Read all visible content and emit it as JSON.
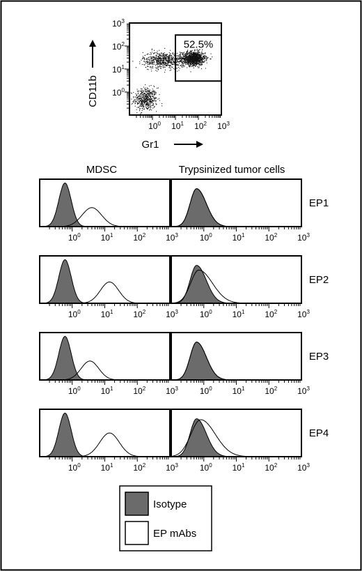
{
  "chart_data": [
    {
      "type": "scatter",
      "xlabel": "Gr1",
      "ylabel": "CD11b",
      "xscale": "log",
      "yscale": "log",
      "xlim": [
        0.1,
        1000
      ],
      "ylim": [
        0.1,
        1000
      ],
      "tick_base": "10",
      "tick_exponents": [
        "0",
        "1",
        "2",
        "3"
      ],
      "gate": {
        "x": [
          10,
          1000
        ],
        "y": [
          3,
          300
        ],
        "label": "52.5%"
      },
      "populations": [
        {
          "cx": 0.5,
          "cy": 0.5,
          "spread": [
            0.25,
            0.25
          ],
          "n": 500
        },
        {
          "cx": 60,
          "cy": 30,
          "spread": [
            0.25,
            0.15
          ],
          "n": 1100
        },
        {
          "cx": 3,
          "cy": 25,
          "spread": [
            0.45,
            0.18
          ],
          "n": 650
        }
      ]
    },
    {
      "type": "area",
      "subtype": "histogram-grid",
      "xscale": "log",
      "xlim": [
        0.1,
        1000
      ],
      "columns": [
        "MDSC",
        "Trypsinized tumor cells"
      ],
      "rows": [
        "EP1",
        "EP2",
        "EP3",
        "EP4"
      ],
      "legend": [
        {
          "label": "Isotype",
          "fill": "#6b6b6b"
        },
        {
          "label": "EP mAbs",
          "fill": "#ffffff"
        }
      ],
      "series": {
        "isotype_mdsc": {
          "peak": 0.6,
          "width": 0.19,
          "height": 0.92
        },
        "isotype_tumor": {
          "peak": 0.6,
          "width": 0.2,
          "height": 0.8,
          "tail": 0.3
        },
        "ep_mdsc": [
          {
            "peak": 4,
            "width": 0.3,
            "height": 0.4
          },
          {
            "peak": 14,
            "width": 0.28,
            "height": 0.45
          },
          {
            "peak": 3.5,
            "width": 0.27,
            "height": 0.4
          },
          {
            "peak": 14,
            "width": 0.3,
            "height": 0.5
          }
        ],
        "ep_tumor": [
          {
            "peak": 0.6,
            "width": 0.2,
            "height": 0.8,
            "tail": 0.3
          },
          {
            "peak": 0.7,
            "width": 0.25,
            "height": 0.7,
            "tail": 0.42
          },
          {
            "peak": 0.6,
            "width": 0.2,
            "height": 0.8,
            "tail": 0.3
          },
          {
            "peak": 0.8,
            "width": 0.3,
            "height": 0.78,
            "tail": 0.45
          }
        ]
      }
    }
  ]
}
